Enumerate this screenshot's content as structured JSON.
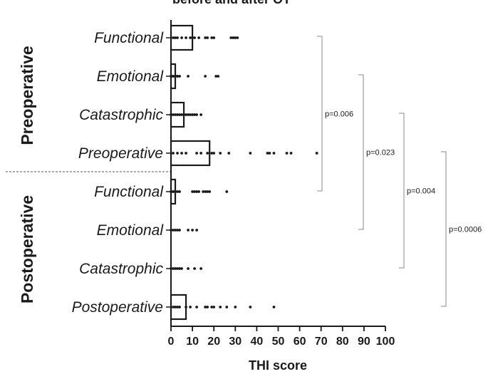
{
  "chart_data": {
    "type": "bar",
    "orientation": "horizontal",
    "title": "before and after OT",
    "xlabel": "THI score",
    "xlim": [
      0,
      100
    ],
    "xticks": [
      0,
      10,
      20,
      30,
      40,
      50,
      60,
      70,
      80,
      90,
      100
    ],
    "groups": [
      {
        "name": "Preoperative",
        "category_indices": [
          0,
          1,
          2,
          3
        ]
      },
      {
        "name": "Postoperative",
        "category_indices": [
          4,
          5,
          6,
          7
        ]
      }
    ],
    "categories": [
      {
        "label": "Functional",
        "group": "Preoperative",
        "mean": 10,
        "points": [
          1,
          2,
          3,
          5,
          7,
          9,
          10,
          11,
          13,
          16,
          17,
          19,
          20,
          28,
          29,
          30,
          31
        ]
      },
      {
        "label": "Emotional",
        "group": "Preoperative",
        "mean": 2,
        "points": [
          0,
          1,
          1,
          2,
          3,
          3,
          4,
          8,
          16,
          21,
          22
        ]
      },
      {
        "label": "Catastrophic",
        "group": "Preoperative",
        "mean": 6,
        "points": [
          0,
          1,
          2,
          3,
          4,
          5,
          6,
          7,
          8,
          9,
          10,
          11,
          12,
          14
        ]
      },
      {
        "label": "Preoperative",
        "group": "Preoperative",
        "mean": 18,
        "points": [
          1,
          3,
          5,
          7,
          12,
          14,
          17,
          19,
          20,
          23,
          27,
          37,
          45,
          46,
          48,
          54,
          56,
          68
        ]
      },
      {
        "label": "Functional",
        "group": "Postoperative",
        "mean": 2,
        "points": [
          0,
          1,
          1,
          2,
          3,
          4,
          10,
          11,
          12,
          13,
          15,
          16,
          17,
          18,
          26
        ]
      },
      {
        "label": "Emotional",
        "group": "Postoperative",
        "mean": 0,
        "points": [
          0,
          1,
          2,
          3,
          4,
          8,
          10,
          12
        ]
      },
      {
        "label": "Catastrophic",
        "group": "Postoperative",
        "mean": 0,
        "points": [
          0,
          1,
          2,
          3,
          4,
          5,
          8,
          11,
          14
        ]
      },
      {
        "label": "Postoperative",
        "group": "Postoperative",
        "mean": 7,
        "points": [
          1,
          2,
          3,
          4,
          7,
          9,
          12,
          16,
          17,
          19,
          20,
          23,
          26,
          30,
          37,
          48
        ]
      }
    ],
    "comparisons": [
      {
        "from_index": 0,
        "to_index": 4,
        "label": "p=0.006"
      },
      {
        "from_index": 1,
        "to_index": 5,
        "label": "p=0.023"
      },
      {
        "from_index": 2,
        "to_index": 6,
        "label": "p=0.004"
      },
      {
        "from_index": 3,
        "to_index": 7,
        "label": "p=0.0006"
      }
    ],
    "grid": false,
    "legend": "none",
    "colors": {
      "bar_fill": "#ffffff",
      "bar_stroke": "#1a1a1a",
      "points": "#1a1a1a",
      "bracket": "#8a8a8a",
      "divider": "#555555"
    }
  }
}
